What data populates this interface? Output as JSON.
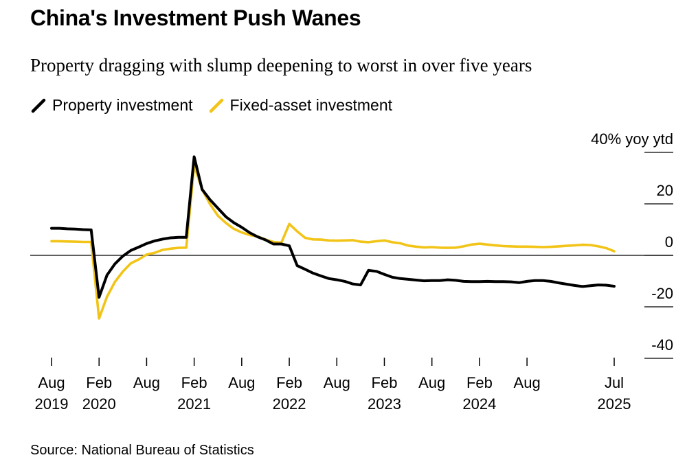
{
  "title": "China's Investment Push Wanes",
  "subtitle": "Property dragging with slump deepening to worst in over five years",
  "legend": {
    "items": [
      {
        "label": "Property investment",
        "color": "#000000"
      },
      {
        "label": "Fixed-asset investment",
        "color": "#f2c418"
      }
    ]
  },
  "source": "Source: National Bureau of Statistics",
  "chart_data": {
    "type": "line",
    "title": "China's Investment Push Wanes",
    "subtitle": "Property dragging with slump deepening to worst in over five years",
    "xlabel": "",
    "ylabel": "40% yoy ytd",
    "ylim": [
      -40,
      40
    ],
    "yticks": [
      40,
      20,
      0,
      -20,
      -40
    ],
    "ytick_labels": [
      "40% yoy ytd",
      "20",
      "0",
      "-20",
      "-40"
    ],
    "legend_position": "top-left",
    "x_ticks": [
      {
        "month": 0,
        "line1": "Aug",
        "line2": "2019"
      },
      {
        "month": 6,
        "line1": "Feb",
        "line2": "2020"
      },
      {
        "month": 12,
        "line1": "Aug",
        "line2": ""
      },
      {
        "month": 18,
        "line1": "Feb",
        "line2": "2021"
      },
      {
        "month": 24,
        "line1": "Aug",
        "line2": ""
      },
      {
        "month": 30,
        "line1": "Feb",
        "line2": "2022"
      },
      {
        "month": 36,
        "line1": "Aug",
        "line2": ""
      },
      {
        "month": 42,
        "line1": "Feb",
        "line2": "2023"
      },
      {
        "month": 48,
        "line1": "Aug",
        "line2": ""
      },
      {
        "month": 54,
        "line1": "Feb",
        "line2": "2024"
      },
      {
        "month": 60,
        "line1": "Aug",
        "line2": ""
      },
      {
        "month": 71,
        "line1": "Jul",
        "line2": "2025"
      }
    ],
    "x": [
      0,
      1,
      2,
      3,
      4,
      5,
      6,
      7,
      8,
      9,
      10,
      11,
      12,
      13,
      14,
      15,
      16,
      17,
      18,
      19,
      20,
      21,
      22,
      23,
      24,
      25,
      26,
      27,
      28,
      29,
      30,
      31,
      32,
      33,
      34,
      35,
      36,
      37,
      38,
      39,
      40,
      41,
      42,
      43,
      44,
      45,
      46,
      47,
      48,
      49,
      50,
      51,
      52,
      53,
      54,
      55,
      56,
      57,
      58,
      59,
      60,
      61,
      62,
      63,
      64,
      65,
      66,
      67,
      68,
      69,
      70,
      71
    ],
    "series": [
      {
        "name": "Property investment",
        "color": "#000000",
        "values": [
          10.5,
          10.5,
          10.3,
          10.2,
          10.0,
          9.9,
          -16.3,
          -7.7,
          -3.3,
          -0.3,
          1.9,
          3.2,
          4.6,
          5.6,
          6.3,
          6.8,
          7.0,
          7.0,
          38.3,
          25.6,
          21.6,
          18.3,
          15.0,
          12.7,
          10.9,
          8.8,
          7.2,
          6.0,
          4.4,
          4.4,
          3.7,
          -4.0,
          -5.4,
          -6.9,
          -8.0,
          -9.0,
          -9.5,
          -10.1,
          -11.1,
          -11.5,
          -5.8,
          -6.2,
          -7.4,
          -8.5,
          -9.0,
          -9.3,
          -9.6,
          -9.9,
          -9.8,
          -9.8,
          -9.5,
          -9.7,
          -10.1,
          -10.2,
          -10.2,
          -10.1,
          -10.2,
          -10.2,
          -10.3,
          -10.6,
          -10.1,
          -9.8,
          -9.8,
          -10.1,
          -10.7,
          -11.2,
          -11.7,
          -12.1,
          -11.8,
          -11.5,
          -11.6,
          -12.0
        ],
        "values_note": "x is months since Aug 2019"
      },
      {
        "name": "Fixed-asset investment",
        "color": "#f2c418",
        "values": [
          5.5,
          5.5,
          5.4,
          5.3,
          5.2,
          5.2,
          -24.5,
          -16.1,
          -10.3,
          -6.3,
          -3.1,
          -1.6,
          0.3,
          1.0,
          2.1,
          2.6,
          2.9,
          3.0,
          35.0,
          25.6,
          19.9,
          15.4,
          12.6,
          10.3,
          8.9,
          7.9,
          7.3,
          6.1,
          5.2,
          4.9,
          12.2,
          9.3,
          6.8,
          6.2,
          6.1,
          5.8,
          5.7,
          5.8,
          5.9,
          5.3,
          5.1,
          5.5,
          5.8,
          5.1,
          4.7,
          3.8,
          3.4,
          3.1,
          3.2,
          3.0,
          2.9,
          3.0,
          3.5,
          4.2,
          4.5,
          4.2,
          3.9,
          3.6,
          3.5,
          3.4,
          3.4,
          3.3,
          3.2,
          3.3,
          3.5,
          3.7,
          3.9,
          4.1,
          4.0,
          3.5,
          2.8,
          1.6
        ]
      }
    ]
  }
}
